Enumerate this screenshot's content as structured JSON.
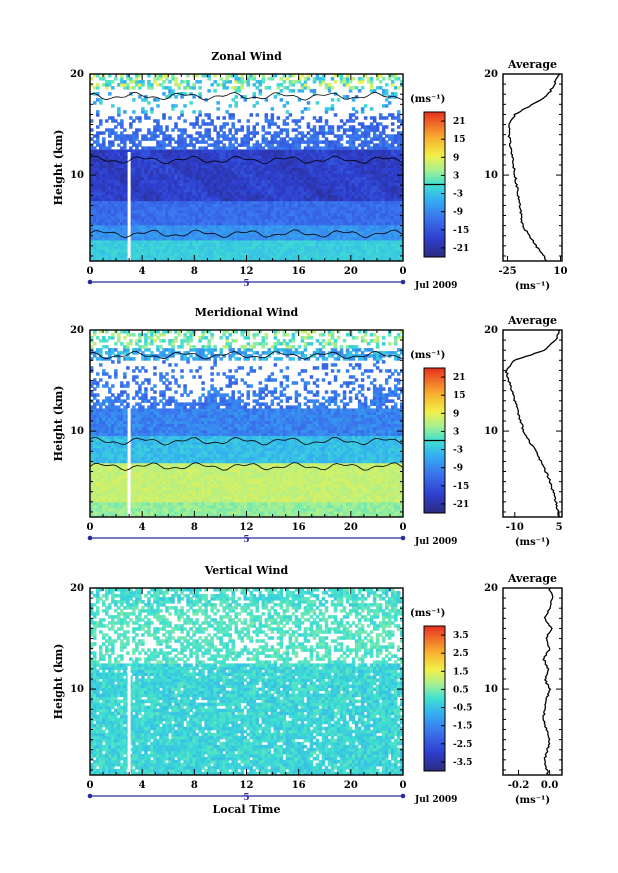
{
  "figure": {
    "xlabel": "Local Time",
    "date_label": "Jul 2009",
    "day_label": "5"
  },
  "chart_data": [
    {
      "type": "heatmap",
      "title": "Zonal Wind",
      "ylabel": "Height (km)",
      "xlabel": "Local Time",
      "x_ticks": [
        "0",
        "4",
        "8",
        "12",
        "16",
        "20",
        "0"
      ],
      "xlim": [
        0,
        24
      ],
      "y_ticks": [
        "10",
        "20"
      ],
      "ylim": [
        1.5,
        20
      ],
      "colorbar": {
        "unit_label": "(ms⁻¹)",
        "ticks": [
          "21",
          "15",
          "9",
          "3",
          "-3",
          "-9",
          "-15",
          "-21"
        ],
        "range": [
          -24,
          24
        ],
        "zero_line": true
      },
      "date_label": "Jul 2009",
      "day_label": "5",
      "gap_time": 3,
      "zero_contours": [
        4.2,
        11.5,
        17.8
      ],
      "profile_kind": "zonal",
      "average_profile": {
        "title": "Average",
        "xlabel": "(ms⁻¹)",
        "x_ticks": [
          "-25",
          "10"
        ],
        "xlim": [
          -28,
          11
        ],
        "y_ticks": [
          "10",
          "20"
        ],
        "ylim": [
          1.5,
          20
        ],
        "height": [
          1.5,
          3,
          5,
          7,
          9,
          10,
          11,
          12,
          13,
          14,
          15,
          16,
          17,
          18,
          19,
          20
        ],
        "wind": [
          1,
          -6,
          -15,
          -17,
          -19,
          -20,
          -21,
          -22,
          -23,
          -24,
          -24,
          -20,
          -8,
          2,
          6,
          9
        ]
      }
    },
    {
      "type": "heatmap",
      "title": "Meridional Wind",
      "ylabel": "Height (km)",
      "xlabel": "Local Time",
      "x_ticks": [
        "0",
        "4",
        "8",
        "12",
        "16",
        "20",
        "0"
      ],
      "xlim": [
        0,
        24
      ],
      "y_ticks": [
        "10",
        "20"
      ],
      "ylim": [
        1.5,
        20
      ],
      "colorbar": {
        "unit_label": "(ms⁻¹)",
        "ticks": [
          "21",
          "15",
          "9",
          "3",
          "-3",
          "-9",
          "-15",
          "-21"
        ],
        "range": [
          -24,
          24
        ],
        "zero_line": true
      },
      "date_label": "Jul 2009",
      "day_label": "5",
      "gap_time": 3,
      "zero_contours": [
        6.5,
        9.0,
        17.5
      ],
      "profile_kind": "meridional",
      "average_profile": {
        "title": "Average",
        "xlabel": "(ms⁻¹)",
        "x_ticks": [
          "-10",
          "5"
        ],
        "xlim": [
          -14,
          6
        ],
        "y_ticks": [
          "10",
          "20"
        ],
        "ylim": [
          1.5,
          20
        ],
        "height": [
          1.5,
          3,
          5,
          7,
          9,
          10,
          11,
          12,
          13,
          14,
          15,
          16,
          17,
          18,
          19,
          20
        ],
        "wind": [
          5,
          4,
          2,
          -1,
          -5,
          -7,
          -8,
          -9,
          -10,
          -11,
          -12,
          -13,
          -10,
          0,
          4,
          5
        ]
      }
    },
    {
      "type": "heatmap",
      "title": "Vertical Wind",
      "ylabel": "Height (km)",
      "xlabel": "Local Time",
      "x_ticks": [
        "0",
        "4",
        "8",
        "12",
        "16",
        "20",
        "0"
      ],
      "xlim": [
        0,
        24
      ],
      "y_ticks": [
        "10",
        "20"
      ],
      "ylim": [
        1.5,
        20
      ],
      "colorbar": {
        "unit_label": "(ms⁻¹)",
        "ticks": [
          "3.5",
          "2.5",
          "1.5",
          "0.5",
          "-0.5",
          "-1.5",
          "-2.5",
          "-3.5"
        ],
        "range": [
          -4,
          4
        ],
        "zero_line": false
      },
      "date_label": "Jul 2009",
      "day_label": "5",
      "gap_time": 3,
      "zero_contours": [],
      "profile_kind": "vertical",
      "average_profile": {
        "title": "Average",
        "xlabel": "(ms⁻¹)",
        "x_ticks": [
          "-0.2",
          "0.0"
        ],
        "xlim": [
          -0.3,
          0.08
        ],
        "y_ticks": [
          "10",
          "20"
        ],
        "ylim": [
          1.5,
          20
        ],
        "height": [
          1.5,
          3,
          5,
          7,
          9,
          10,
          11,
          12,
          13,
          14,
          15,
          16,
          17,
          18,
          19,
          20
        ],
        "wind": [
          -0.01,
          -0.03,
          0.0,
          -0.04,
          -0.02,
          0.0,
          -0.03,
          -0.01,
          -0.04,
          0.0,
          -0.02,
          0.01,
          -0.03,
          0.0,
          0.02,
          0.0
        ]
      }
    }
  ]
}
